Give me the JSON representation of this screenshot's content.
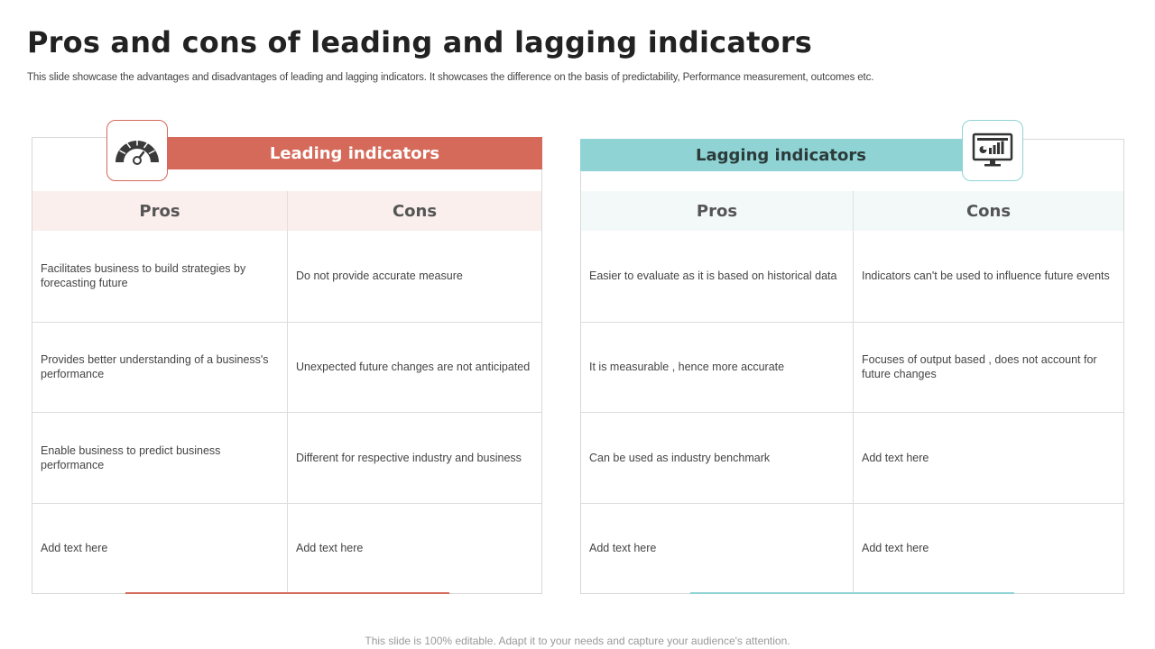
{
  "title": "Pros and cons of leading and lagging indicators",
  "subtitle": "This slide showcase the advantages and disadvantages of leading and lagging indicators. It showcases the difference on the basis of predictability, Performance measurement, outcomes etc.",
  "colors": {
    "leading_accent": "#d5695a",
    "lagging_accent": "#8fd3d4"
  },
  "leading": {
    "heading": "Leading indicators",
    "icon": "speedometer-icon",
    "pros_label": "Pros",
    "cons_label": "Cons",
    "rows": [
      {
        "pro": "Facilitates business to build strategies by forecasting future",
        "con": "Do not provide  accurate measure"
      },
      {
        "pro": "Provides better understanding of a business's performance",
        "con": "Unexpected future changes are not anticipated"
      },
      {
        "pro": "Enable business to predict business performance",
        "con": "Different for respective industry and business"
      },
      {
        "pro": "Add text here",
        "con": "Add text here"
      }
    ]
  },
  "lagging": {
    "heading": "Lagging indicators",
    "icon": "monitor-chart-icon",
    "pros_label": "Pros",
    "cons_label": "Cons",
    "rows": [
      {
        "pro": "Easier to evaluate  as it is based on historical data",
        "con": "Indicators can't be used to influence future events"
      },
      {
        "pro": "It is measurable  , hence more accurate",
        "con": "Focuses of output based , does not account for future changes"
      },
      {
        "pro": "Can be used as industry benchmark",
        "con": "Add text here"
      },
      {
        "pro": "Add text here",
        "con": "Add text here"
      }
    ]
  },
  "footer": "This slide is 100% editable. Adapt it to your needs and capture your audience's attention."
}
